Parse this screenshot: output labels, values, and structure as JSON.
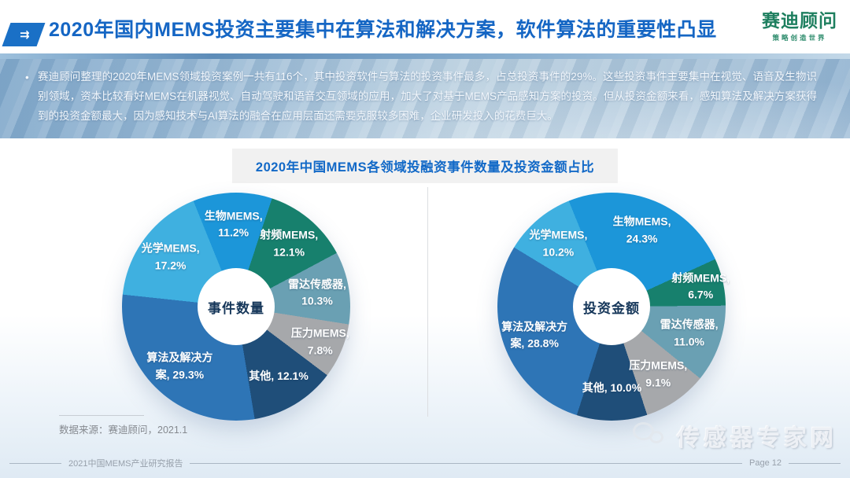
{
  "header": {
    "title": "2020年国内MEMS投资主要集中在算法和解决方案，软件算法的重要性凸显",
    "logo_name": "赛迪顾问",
    "logo_tagline": "策略创造世界",
    "arrow_glyph": "⇉"
  },
  "intro": {
    "bullet": "•",
    "text": "赛迪顾问整理的2020年MEMS领域投资案例一共有116个，其中投资软件与算法的投资事件最多，占总投资事件的29%。这些投资事件主要集中在视觉、语音及生物识别领域，资本比较看好MEMS在机器视觉、自动驾驶和语音交互领域的应用，加大了对基于MEMS产品感知方案的投资。但从投资金额来看，感知算法及解决方案获得到的投资金额最大，因为感知技术与AI算法的融合在应用层面还需要克服较多困难，企业研发投入的花费巨大。"
  },
  "chart_panel": {
    "title": "2020年中国MEMS各领域投融资事件数量及投资金额占比"
  },
  "chart_data": [
    {
      "type": "pie",
      "donut": true,
      "center_label": "事件数量",
      "unit": "%",
      "start_angle_deg": -22,
      "categories": [
        "生物MEMS",
        "射频MEMS",
        "雷达传感器",
        "压力MEMS",
        "其他",
        "算法及解决方案",
        "光学MEMS"
      ],
      "values": [
        11.2,
        12.1,
        10.3,
        7.8,
        12.1,
        29.3,
        17.2
      ],
      "colors": [
        "#1c96d9",
        "#17806d",
        "#6aa0b3",
        "#a6a8ab",
        "#1f4e79",
        "#2e75b6",
        "#3fb0e0"
      ],
      "labels": [
        [
          "生物MEMS,",
          "11.2%"
        ],
        [
          "射频MEMS,",
          "12.1%"
        ],
        [
          "雷达传感器,",
          "10.3%"
        ],
        [
          "压力MEMS,",
          "7.8%"
        ],
        [
          "其他, 12.1%"
        ],
        [
          "算法及解决方",
          "案, 29.3%"
        ],
        [
          "光学MEMS,",
          "17.2%"
        ]
      ]
    },
    {
      "type": "pie",
      "donut": true,
      "center_label": "投资金额",
      "unit": "%",
      "start_angle_deg": -22,
      "categories": [
        "生物MEMS",
        "射频MEMS",
        "雷达传感器",
        "压力MEMS",
        "其他",
        "算法及解决方案",
        "光学MEMS"
      ],
      "values": [
        24.3,
        6.7,
        11.0,
        9.1,
        10.0,
        28.8,
        10.2
      ],
      "colors": [
        "#1c96d9",
        "#17806d",
        "#6aa0b3",
        "#a6a8ab",
        "#1f4e79",
        "#2e75b6",
        "#3fb0e0"
      ],
      "labels": [
        [
          "生物MEMS,",
          "24.3%"
        ],
        [
          "射频MEMS,",
          "6.7%"
        ],
        [
          "雷达传感器,",
          "11.0%"
        ],
        [
          "压力MEMS,",
          "9.1%"
        ],
        [
          "其他, 10.0%"
        ],
        [
          "算法及解决方",
          "案, 28.8%"
        ],
        [
          "光学MEMS,",
          "10.2%"
        ]
      ]
    }
  ],
  "source": {
    "text": "数据来源：赛迪顾问，2021.1"
  },
  "watermark": {
    "text": "传感器专家网"
  },
  "footer": {
    "report_name": "2021中国MEMS产业研究报告",
    "page": "Page 12"
  },
  "colors": {
    "title_blue": "#1566c4",
    "chart_title_blue": "#1269c7",
    "logo_green": "#1e7f5f",
    "center_label_navy": "#16375a"
  }
}
